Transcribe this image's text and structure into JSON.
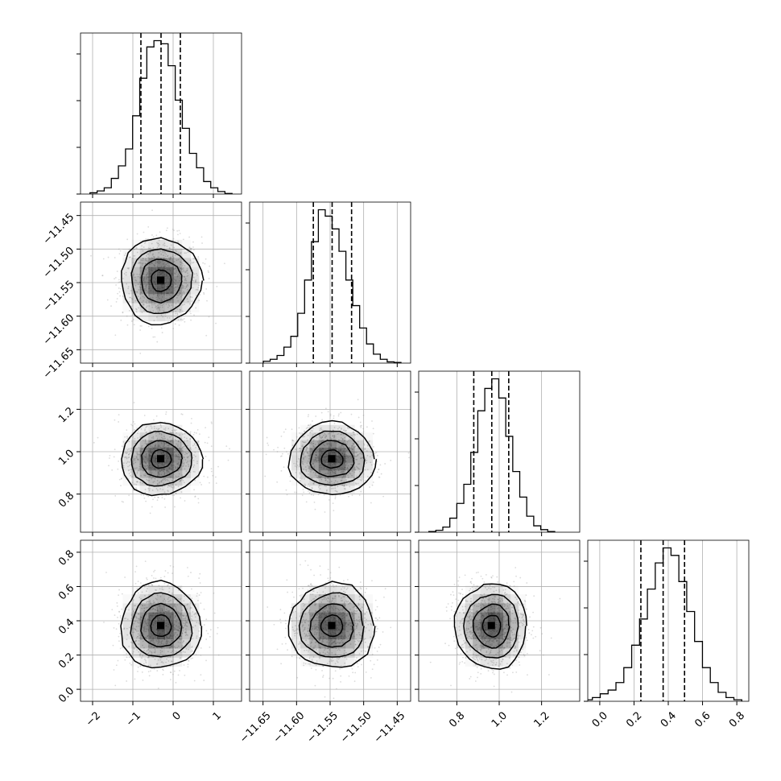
{
  "chart_data": {
    "type": "corner",
    "parameters": [
      {
        "ticks": [
          "−2",
          "−1",
          "0",
          "1"
        ],
        "tick_values": [
          -2,
          -1,
          0,
          1
        ],
        "range": [
          -2.3,
          1.7
        ],
        "quantiles": [
          -0.8,
          -0.3,
          0.18
        ]
      },
      {
        "ticks": [
          "−11.65",
          "−11.60",
          "−11.55",
          "−11.50",
          "−11.45"
        ],
        "tick_values": [
          -11.65,
          -11.6,
          -11.55,
          -11.5,
          -11.45
        ],
        "range": [
          -11.67,
          -11.43
        ],
        "quantiles": [
          -11.575,
          -11.547,
          -11.518
        ]
      },
      {
        "ticks": [
          "0.8",
          "1.0",
          "1.2"
        ],
        "tick_values": [
          0.8,
          1.0,
          1.2
        ],
        "range": [
          0.62,
          1.38
        ],
        "quantiles": [
          0.88,
          0.965,
          1.045
        ]
      },
      {
        "ticks": [
          "0.0",
          "0.2",
          "0.4",
          "0.6",
          "0.8"
        ],
        "tick_values": [
          0.0,
          0.2,
          0.4,
          0.6,
          0.8
        ],
        "range": [
          -0.07,
          0.87
        ],
        "quantiles": [
          0.24,
          0.37,
          0.495
        ]
      }
    ],
    "histograms": [
      {
        "counts": [
          2,
          5,
          10,
          25,
          45,
          72,
          125,
          185,
          235,
          245,
          240,
          205,
          150,
          105,
          65,
          42,
          20,
          10,
          4,
          1
        ]
      },
      {
        "counts": [
          3,
          6,
          12,
          25,
          42,
          78,
          130,
          190,
          240,
          230,
          210,
          175,
          130,
          90,
          55,
          30,
          14,
          6,
          2,
          1
        ]
      },
      {
        "counts": [
          1,
          3,
          8,
          22,
          45,
          75,
          125,
          190,
          225,
          240,
          210,
          150,
          95,
          55,
          25,
          10,
          4,
          1
        ]
      },
      {
        "counts": [
          2,
          5,
          10,
          15,
          25,
          45,
          75,
          110,
          150,
          185,
          205,
          195,
          160,
          120,
          80,
          45,
          25,
          12,
          5,
          2
        ]
      }
    ],
    "scatter_sigma": [
      0.5,
      0.032,
      0.085,
      0.125
    ],
    "grid": true,
    "colors": {
      "line": "#000000",
      "density": "#000000",
      "grid": "#b0b0b0",
      "points": "#999999"
    }
  }
}
